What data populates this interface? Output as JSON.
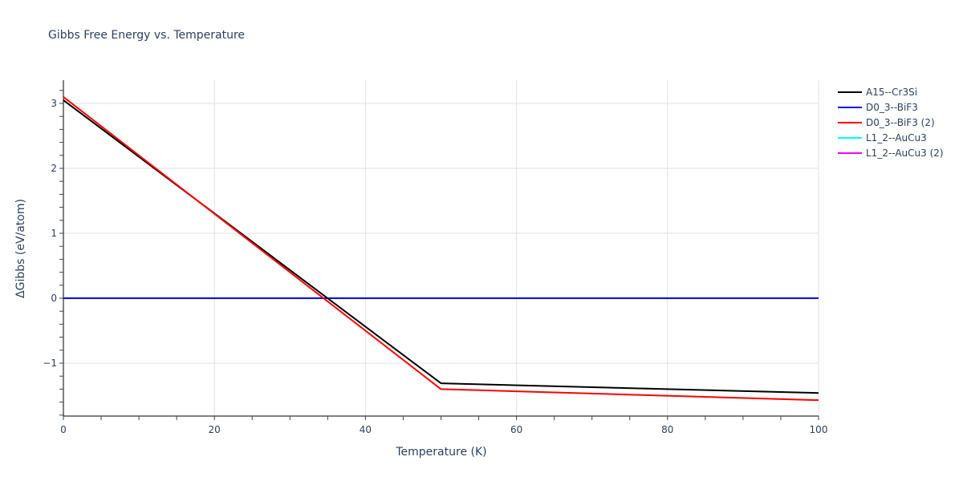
{
  "chart_data": {
    "type": "line",
    "title": "Gibbs Free Energy vs. Temperature",
    "xlabel": "Temperature (K)",
    "ylabel": "ΔGibbs (eV/atom)",
    "xlim": [
      0,
      100
    ],
    "ylim": [
      -1.8,
      3.35
    ],
    "x_ticks": [
      0,
      20,
      40,
      60,
      80,
      100
    ],
    "y_ticks": [
      -1,
      0,
      1,
      2,
      3
    ],
    "y_tick_labels": [
      "−1",
      "0",
      "1",
      "2",
      "3"
    ],
    "grid": true,
    "legend_position": "right",
    "series": [
      {
        "name": "A15--Cr3Si",
        "color": "#000000",
        "x": [
          0,
          50,
          100
        ],
        "y": [
          3.05,
          -1.31,
          -1.46
        ]
      },
      {
        "name": "D0_3--BiF3",
        "color": "#0000ff",
        "x": [
          0,
          50,
          100
        ],
        "y": [
          0,
          0,
          0
        ]
      },
      {
        "name": "D0_3--BiF3 (2)",
        "color": "#ff0000",
        "x": [
          0,
          50,
          100
        ],
        "y": [
          3.1,
          -1.4,
          -1.57
        ]
      },
      {
        "name": "L1_2--AuCu3",
        "color": "#00ffff",
        "x": [
          0,
          50,
          100
        ],
        "y": [
          0,
          0,
          0
        ]
      },
      {
        "name": "L1_2--AuCu3 (2)",
        "color": "#ff00ff",
        "x": [
          0,
          50,
          100
        ],
        "y": [
          0,
          0,
          0
        ]
      }
    ]
  },
  "legend": {
    "items": [
      {
        "label": "A15--Cr3Si",
        "color": "#000000"
      },
      {
        "label": "D0_3--BiF3",
        "color": "#0000ff"
      },
      {
        "label": "D0_3--BiF3 (2)",
        "color": "#ff0000"
      },
      {
        "label": "L1_2--AuCu3",
        "color": "#00ffff"
      },
      {
        "label": "L1_2--AuCu3 (2)",
        "color": "#ff00ff"
      }
    ]
  }
}
